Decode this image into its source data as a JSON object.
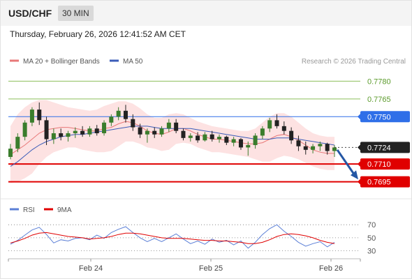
{
  "header": {
    "symbol": "USD/CHF",
    "timeframe": "30 MIN"
  },
  "datetime": "Thursday, February 26, 2026 12:41:52 AM CET",
  "legend": {
    "ma20_label": "MA 20 + Bollinger Bands",
    "ma50_label": "MA 50",
    "copyright": "Research © 2026 Trading Central"
  },
  "rsi_legend": {
    "rsi_label": "RSI",
    "ma_label": "9MA"
  },
  "colors": {
    "ma20": "#e87878",
    "ma50": "#3b5cb8",
    "bands": "#fde2e2",
    "candle_up": "#3a7d2c",
    "candle_down": "#222222",
    "target": "#8bbf5a",
    "pivot": "#2f6fe8",
    "support": "#e00000",
    "arrow": "#2456a4",
    "rsi": "#5b7fd6",
    "rsi_ma": "#e00000"
  },
  "chart_data": [
    {
      "type": "candlestick",
      "ylim": [
        0.7683,
        0.7792
      ],
      "x_ticks": [
        "Feb 24",
        "Feb 25",
        "Feb 26"
      ],
      "last_price": "0.7724",
      "levels": [
        {
          "label": "0.7780",
          "value": 0.778,
          "kind": "target"
        },
        {
          "label": "0.7765",
          "value": 0.7765,
          "kind": "target"
        },
        {
          "label": "0.7750",
          "value": 0.775,
          "kind": "pivot"
        },
        {
          "label": "0.7710",
          "value": 0.771,
          "kind": "support"
        },
        {
          "label": "0.7695",
          "value": 0.7695,
          "kind": "support"
        }
      ],
      "arrow": {
        "from": 0.7722,
        "to": 0.7697
      },
      "series": [
        {
          "name": "MA 20",
          "values": [
            0.7718,
            0.7722,
            0.7726,
            0.7731,
            0.7736,
            0.7739,
            0.774,
            0.7741,
            0.7741,
            0.774,
            0.7739,
            0.7738,
            0.7738,
            0.774,
            0.7741,
            0.7744,
            0.7746,
            0.7745,
            0.7742,
            0.7738,
            0.7736,
            0.7735,
            0.7737,
            0.774,
            0.774,
            0.7738,
            0.7735,
            0.7733,
            0.7731,
            0.7731,
            0.773,
            0.7729,
            0.7728,
            0.7727,
            0.7727,
            0.7728,
            0.7731,
            0.7734,
            0.7735,
            0.7733,
            0.773,
            0.7726,
            0.7722,
            0.772,
            0.7719,
            0.7719
          ]
        },
        {
          "name": "MA 50",
          "values": [
            0.7708,
            0.7712,
            0.7717,
            0.7722,
            0.7726,
            0.7729,
            0.7731,
            0.7733,
            0.7734,
            0.7735,
            0.7735,
            0.7736,
            0.7737,
            0.7738,
            0.7739,
            0.774,
            0.7741,
            0.7742,
            0.7742,
            0.7742,
            0.7741,
            0.774,
            0.774,
            0.774,
            0.774,
            0.774,
            0.7739,
            0.7738,
            0.7737,
            0.7736,
            0.7735,
            0.7734,
            0.7733,
            0.7732,
            0.7731,
            0.7731,
            0.7731,
            0.7732,
            0.7732,
            0.7732,
            0.7731,
            0.773,
            0.7729,
            0.7728,
            0.7727,
            0.7726
          ]
        },
        {
          "name": "Bollinger Upper",
          "values": [
            0.7742,
            0.7752,
            0.7758,
            0.7762,
            0.7764,
            0.7764,
            0.7762,
            0.776,
            0.7758,
            0.7757,
            0.7756,
            0.7755,
            0.7756,
            0.7759,
            0.7761,
            0.7763,
            0.7763,
            0.7761,
            0.7757,
            0.7752,
            0.7749,
            0.7749,
            0.7752,
            0.7753,
            0.7752,
            0.7749,
            0.7746,
            0.7744,
            0.7742,
            0.7741,
            0.774,
            0.7739,
            0.7738,
            0.7738,
            0.774,
            0.7745,
            0.775,
            0.7753,
            0.7753,
            0.775,
            0.7745,
            0.774,
            0.7736,
            0.7734,
            0.7733,
            0.7733
          ]
        },
        {
          "name": "Bollinger Lower",
          "values": [
            0.7694,
            0.7695,
            0.7698,
            0.7702,
            0.771,
            0.7716,
            0.772,
            0.7722,
            0.7724,
            0.7724,
            0.7722,
            0.7721,
            0.772,
            0.772,
            0.7721,
            0.7725,
            0.7729,
            0.7729,
            0.7727,
            0.7724,
            0.7723,
            0.7721,
            0.7722,
            0.7727,
            0.7728,
            0.7727,
            0.7724,
            0.7722,
            0.772,
            0.772,
            0.7719,
            0.7718,
            0.7717,
            0.7716,
            0.7714,
            0.7712,
            0.7712,
            0.7715,
            0.7717,
            0.7716,
            0.7714,
            0.7711,
            0.7708,
            0.7706,
            0.7705,
            0.7705
          ]
        }
      ],
      "candles": [
        {
          "o": 0.7716,
          "h": 0.7727,
          "l": 0.7714,
          "c": 0.7723
        },
        {
          "o": 0.7723,
          "h": 0.7736,
          "l": 0.772,
          "c": 0.7733
        },
        {
          "o": 0.7733,
          "h": 0.7747,
          "l": 0.773,
          "c": 0.7745
        },
        {
          "o": 0.7745,
          "h": 0.7758,
          "l": 0.7742,
          "c": 0.7756
        },
        {
          "o": 0.7756,
          "h": 0.7762,
          "l": 0.7743,
          "c": 0.7747
        },
        {
          "o": 0.7747,
          "h": 0.775,
          "l": 0.7726,
          "c": 0.7731
        },
        {
          "o": 0.7731,
          "h": 0.774,
          "l": 0.7727,
          "c": 0.7736
        },
        {
          "o": 0.7736,
          "h": 0.774,
          "l": 0.773,
          "c": 0.7733
        },
        {
          "o": 0.7733,
          "h": 0.7738,
          "l": 0.7729,
          "c": 0.7736
        },
        {
          "o": 0.7736,
          "h": 0.7741,
          "l": 0.7732,
          "c": 0.7738
        },
        {
          "o": 0.7738,
          "h": 0.7742,
          "l": 0.7733,
          "c": 0.7735
        },
        {
          "o": 0.7735,
          "h": 0.7742,
          "l": 0.7733,
          "c": 0.774
        },
        {
          "o": 0.774,
          "h": 0.7743,
          "l": 0.7734,
          "c": 0.7736
        },
        {
          "o": 0.7736,
          "h": 0.7747,
          "l": 0.7734,
          "c": 0.7745
        },
        {
          "o": 0.7745,
          "h": 0.7752,
          "l": 0.7742,
          "c": 0.775
        },
        {
          "o": 0.775,
          "h": 0.7758,
          "l": 0.7747,
          "c": 0.7755
        },
        {
          "o": 0.7755,
          "h": 0.776,
          "l": 0.7745,
          "c": 0.7748
        },
        {
          "o": 0.7748,
          "h": 0.7752,
          "l": 0.7738,
          "c": 0.7741
        },
        {
          "o": 0.7741,
          "h": 0.7744,
          "l": 0.7732,
          "c": 0.7735
        },
        {
          "o": 0.7735,
          "h": 0.774,
          "l": 0.7728,
          "c": 0.7738
        },
        {
          "o": 0.7738,
          "h": 0.7741,
          "l": 0.7732,
          "c": 0.7735
        },
        {
          "o": 0.7735,
          "h": 0.7742,
          "l": 0.7733,
          "c": 0.774
        },
        {
          "o": 0.774,
          "h": 0.7748,
          "l": 0.7737,
          "c": 0.7745
        },
        {
          "o": 0.7745,
          "h": 0.7748,
          "l": 0.7736,
          "c": 0.7738
        },
        {
          "o": 0.7738,
          "h": 0.774,
          "l": 0.773,
          "c": 0.7732
        },
        {
          "o": 0.7732,
          "h": 0.7736,
          "l": 0.7729,
          "c": 0.7734
        },
        {
          "o": 0.7734,
          "h": 0.7737,
          "l": 0.7728,
          "c": 0.773
        },
        {
          "o": 0.773,
          "h": 0.7737,
          "l": 0.7729,
          "c": 0.7735
        },
        {
          "o": 0.7735,
          "h": 0.7738,
          "l": 0.7729,
          "c": 0.7731
        },
        {
          "o": 0.7731,
          "h": 0.7735,
          "l": 0.7728,
          "c": 0.7733
        },
        {
          "o": 0.7733,
          "h": 0.7734,
          "l": 0.7726,
          "c": 0.7728
        },
        {
          "o": 0.7728,
          "h": 0.7733,
          "l": 0.7725,
          "c": 0.7731
        },
        {
          "o": 0.7731,
          "h": 0.7732,
          "l": 0.7722,
          "c": 0.7724
        },
        {
          "o": 0.7724,
          "h": 0.7729,
          "l": 0.7717,
          "c": 0.7726
        },
        {
          "o": 0.7726,
          "h": 0.7736,
          "l": 0.7723,
          "c": 0.7734
        },
        {
          "o": 0.7734,
          "h": 0.7742,
          "l": 0.7731,
          "c": 0.774
        },
        {
          "o": 0.774,
          "h": 0.7749,
          "l": 0.7737,
          "c": 0.7747
        },
        {
          "o": 0.7747,
          "h": 0.7752,
          "l": 0.774,
          "c": 0.7742
        },
        {
          "o": 0.7742,
          "h": 0.7746,
          "l": 0.7735,
          "c": 0.7738
        },
        {
          "o": 0.7738,
          "h": 0.7741,
          "l": 0.7727,
          "c": 0.773
        },
        {
          "o": 0.773,
          "h": 0.7734,
          "l": 0.7721,
          "c": 0.7725
        },
        {
          "o": 0.7725,
          "h": 0.7729,
          "l": 0.7718,
          "c": 0.7722
        },
        {
          "o": 0.7722,
          "h": 0.7727,
          "l": 0.7719,
          "c": 0.7725
        },
        {
          "o": 0.7725,
          "h": 0.7729,
          "l": 0.7721,
          "c": 0.7727
        },
        {
          "o": 0.7727,
          "h": 0.7728,
          "l": 0.7718,
          "c": 0.7721
        },
        {
          "o": 0.7721,
          "h": 0.7726,
          "l": 0.7716,
          "c": 0.7724
        }
      ]
    },
    {
      "type": "line",
      "ylim": [
        22,
        82
      ],
      "y_ticks": [
        "70",
        "50",
        "30"
      ],
      "series": [
        {
          "name": "RSI",
          "values": [
            40,
            46,
            54,
            62,
            66,
            55,
            42,
            47,
            45,
            49,
            50,
            47,
            54,
            49,
            58,
            63,
            67,
            58,
            50,
            44,
            49,
            44,
            50,
            56,
            48,
            41,
            45,
            40,
            48,
            43,
            46,
            39,
            45,
            34,
            43,
            55,
            64,
            70,
            60,
            52,
            43,
            37,
            41,
            44,
            36,
            43
          ]
        },
        {
          "name": "9MA",
          "values": [
            42,
            45,
            49,
            54,
            57,
            58,
            56,
            54,
            52,
            51,
            50,
            48,
            49,
            50,
            52,
            55,
            57,
            57,
            56,
            54,
            52,
            50,
            49,
            49,
            49,
            48,
            47,
            46,
            46,
            45,
            45,
            44,
            43,
            41,
            41,
            43,
            47,
            52,
            55,
            56,
            55,
            53,
            50,
            46,
            43,
            41
          ]
        }
      ]
    }
  ]
}
